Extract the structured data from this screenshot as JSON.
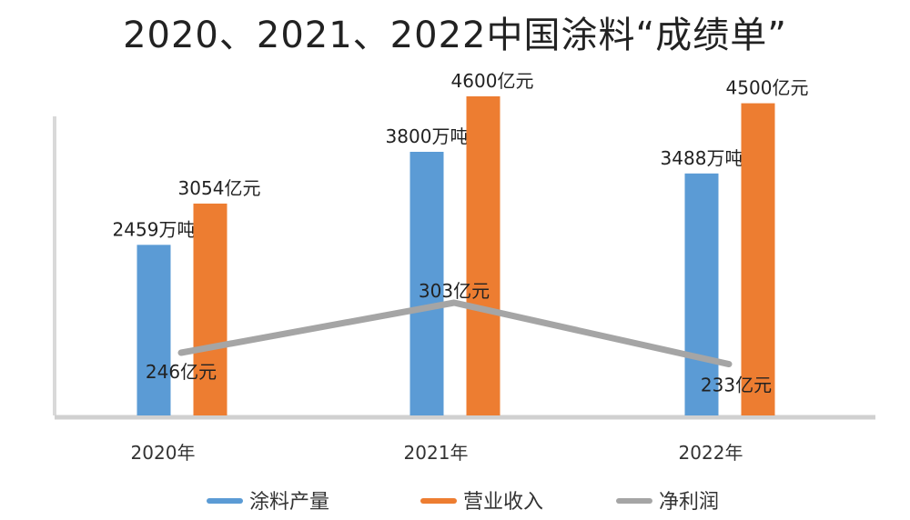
{
  "chart_data": {
    "type": "bar",
    "title": "2020、2021、2022中国涂料“成绩单”",
    "categories": [
      "2020年",
      "2021年",
      "2022年"
    ],
    "series": [
      {
        "name": "涂料产量",
        "type": "bar",
        "values": [
          2459,
          3800,
          3488
        ],
        "labels": [
          "2459万吨",
          "3800万吨",
          "3488万吨"
        ],
        "color": "#5B9BD5"
      },
      {
        "name": "营业收入",
        "type": "bar",
        "values": [
          3054,
          4600,
          4500
        ],
        "labels": [
          "3054亿元",
          "4600亿元",
          "4500亿元"
        ],
        "color": "#ED7D31"
      },
      {
        "name": "净利润",
        "type": "line",
        "values": [
          246,
          303,
          233
        ],
        "labels": [
          "246亿元",
          "303亿元",
          "233亿元"
        ],
        "color": "#A5A5A5"
      }
    ],
    "legend_position": "bottom",
    "grid": false
  }
}
